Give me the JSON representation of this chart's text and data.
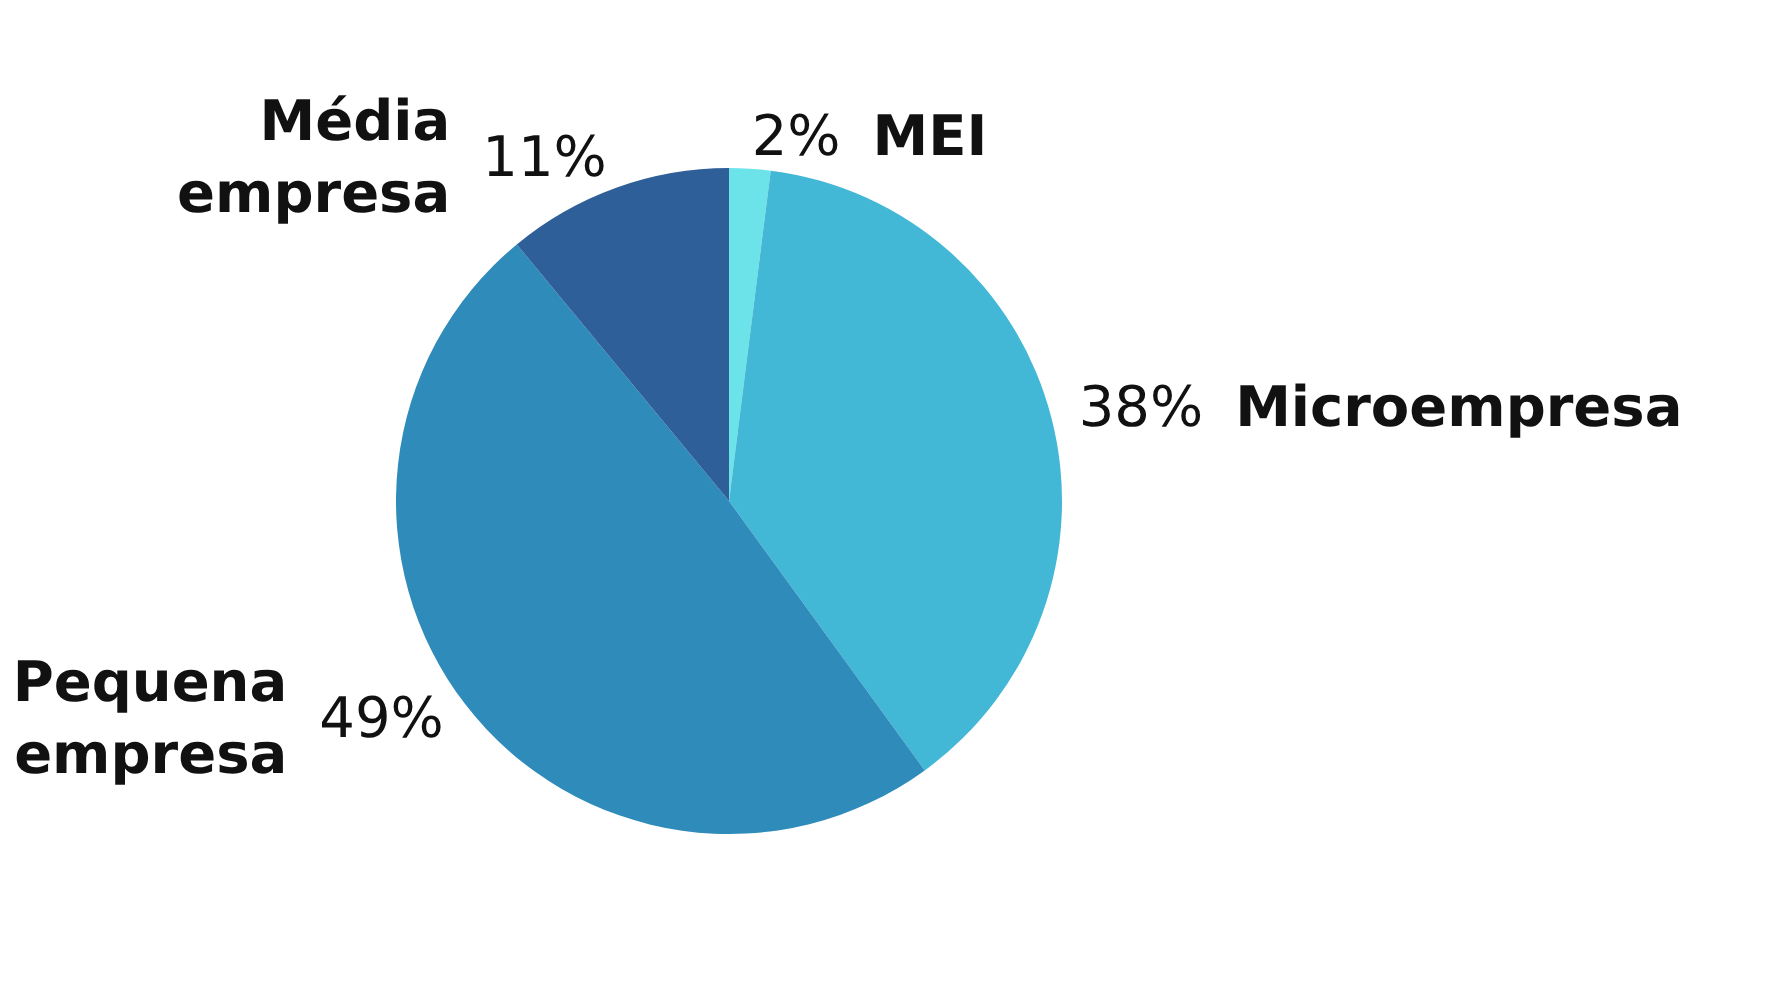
{
  "chart_data": {
    "type": "pie",
    "categories": [
      "MEI",
      "Microempresa",
      "Pequena empresa",
      "Média empresa"
    ],
    "values": [
      2,
      38,
      49,
      11
    ],
    "colors": [
      "#6be3e9",
      "#42b7d6",
      "#2e8bba",
      "#2e5f98"
    ],
    "value_labels": [
      "2%",
      "38%",
      "49%",
      "11%"
    ],
    "legend": false
  }
}
